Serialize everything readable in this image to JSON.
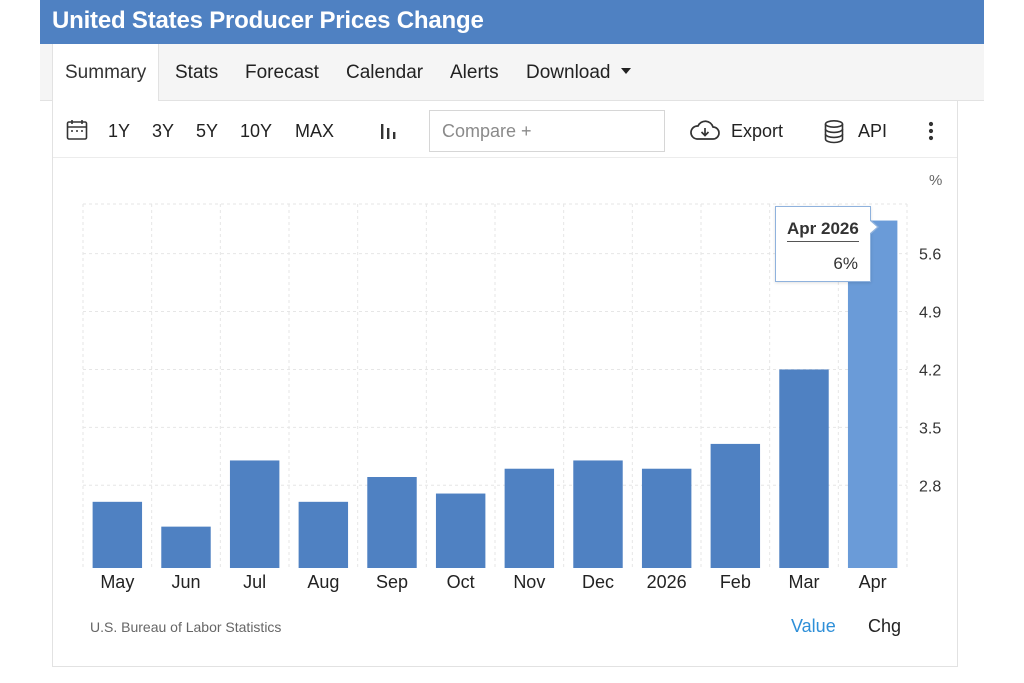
{
  "header": {
    "title": "United States Producer Prices Change"
  },
  "nav": {
    "tabs": [
      {
        "label": "Summary",
        "active": true
      },
      {
        "label": "Stats"
      },
      {
        "label": "Forecast"
      },
      {
        "label": "Calendar"
      },
      {
        "label": "Alerts"
      },
      {
        "label": "Download",
        "has_dropdown": true
      }
    ]
  },
  "toolbar": {
    "ranges": [
      "1Y",
      "3Y",
      "5Y",
      "10Y",
      "MAX"
    ],
    "icons": {
      "calendar": "calendar-icon",
      "chart_type": "bar-chart-icon",
      "export": "cloud-download-icon",
      "api": "database-icon",
      "more": "more-vertical-icon"
    },
    "compare_placeholder": "Compare +",
    "export_label": "Export",
    "api_label": "API"
  },
  "chart_data": {
    "type": "bar",
    "categories": [
      "May",
      "Jun",
      "Jul",
      "Aug",
      "Sep",
      "Oct",
      "Nov",
      "Dec",
      "2026",
      "Feb",
      "Mar",
      "Apr"
    ],
    "values": [
      2.6,
      2.3,
      3.1,
      2.6,
      2.9,
      2.7,
      3.0,
      3.1,
      3.0,
      3.3,
      4.2,
      6.0
    ],
    "unit": "%",
    "yticks": [
      2.8,
      3.5,
      4.2,
      4.9,
      5.6
    ],
    "ylim": [
      1.8,
      6.2
    ],
    "grid": true,
    "highlight_index": 11,
    "colors": {
      "bar": "#4f81c2",
      "highlight": "#6a9bd8"
    },
    "tooltip": {
      "date": "Apr 2026",
      "value": "6%"
    }
  },
  "footer": {
    "source": "U.S. Bureau of Labor Statistics",
    "value_label": "Value",
    "chg_label": "Chg",
    "value_color": "#2e8fd8"
  }
}
